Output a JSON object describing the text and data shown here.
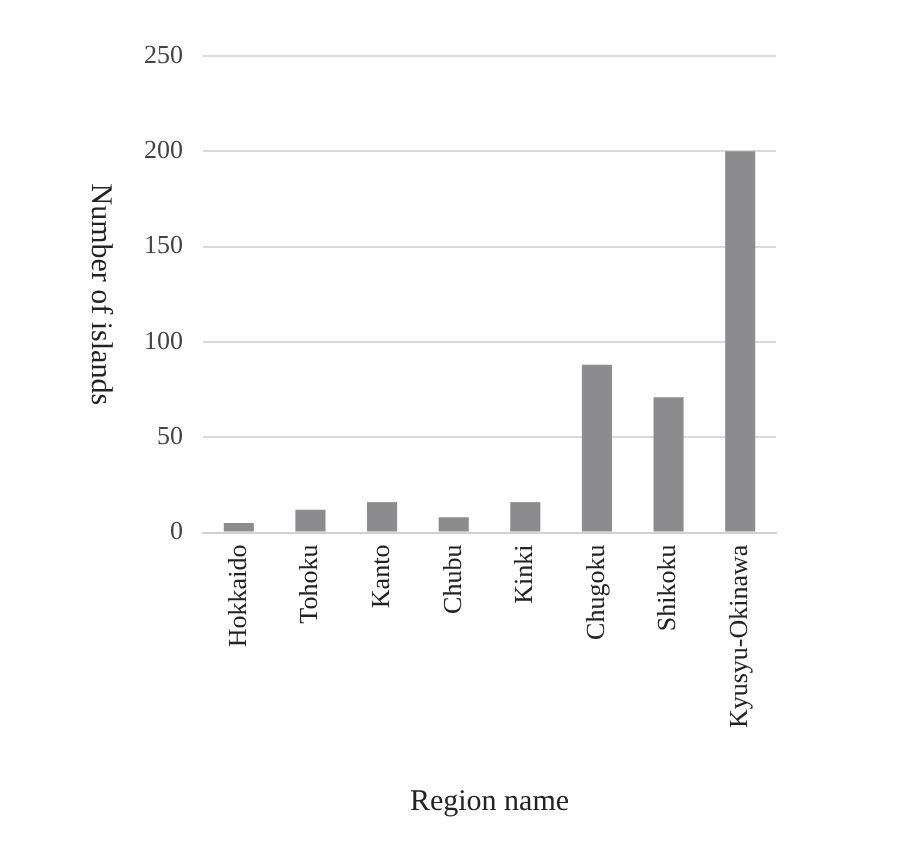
{
  "chart_data": {
    "type": "bar",
    "xlabel": "Region name",
    "ylabel": "Number of islands",
    "categories": [
      "Hokkaido",
      "Tohoku",
      "Kanto",
      "Chubu",
      "Kinki",
      "Chugoku",
      "Shikoku",
      "Kyusyu-Okinawa"
    ],
    "values": [
      5,
      12,
      16,
      8,
      16,
      88,
      71,
      200
    ],
    "color": "#8c8c8e",
    "ylim": [
      0,
      250
    ],
    "yticks": [
      0,
      50,
      100,
      150,
      200,
      250
    ],
    "grid": "y"
  }
}
